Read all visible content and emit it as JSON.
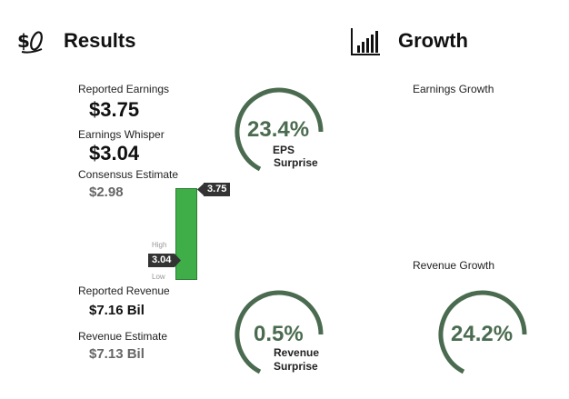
{
  "results": {
    "title": "Results",
    "icon": "money-icon",
    "reported_earnings_label": "Reported Earnings",
    "reported_earnings_value": "$3.75",
    "whisper_label": "Earnings Whisper",
    "whisper_value": "$3.04",
    "consensus_label": "Consensus Estimate",
    "consensus_value": "$2.98",
    "bar_chart": {
      "high_label": "High",
      "low_label": "Low",
      "actual_tag": "3.75",
      "whisper_tag": "3.04"
    },
    "reported_revenue_label": "Reported Revenue",
    "reported_revenue_value": "$7.16 Bil",
    "revenue_estimate_label": "Revenue Estimate",
    "revenue_estimate_value": "$7.13 Bil",
    "eps_surprise_value": "23.4%",
    "eps_surprise_line1": "EPS",
    "eps_surprise_line2": "Surprise",
    "revenue_surprise_value": "0.5%",
    "revenue_surprise_line1": "Revenue",
    "revenue_surprise_line2": "Surprise"
  },
  "growth": {
    "title": "Growth",
    "icon": "bar-chart-icon",
    "earnings_growth_label": "Earnings Growth",
    "revenue_growth_label": "Revenue Growth",
    "revenue_growth_value": "24.2%"
  },
  "colors": {
    "ring": "#4a6b4f",
    "bar": "#3fae49",
    "tag": "#333333"
  }
}
